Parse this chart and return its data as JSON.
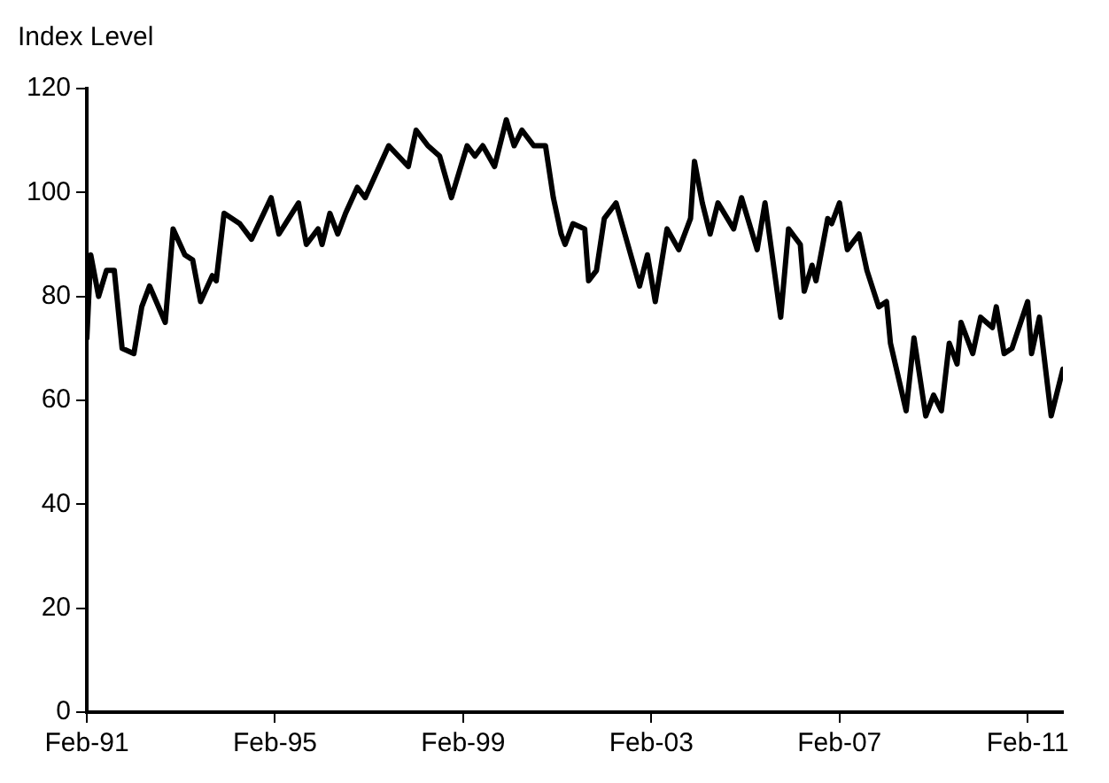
{
  "chart_data": {
    "type": "line",
    "ylabel": "Index Level",
    "x": [
      "1991-02",
      "1991-03",
      "1991-05",
      "1991-07",
      "1991-09",
      "1991-11",
      "1992-02",
      "1992-04",
      "1992-06",
      "1992-10",
      "1992-12",
      "1993-03",
      "1993-05",
      "1993-07",
      "1993-10",
      "1993-11",
      "1994-01",
      "1994-05",
      "1994-08",
      "1995-01",
      "1995-03",
      "1995-08",
      "1995-10",
      "1996-01",
      "1996-02",
      "1996-04",
      "1996-06",
      "1996-08",
      "1996-11",
      "1997-01",
      "1997-07",
      "1997-12",
      "1998-02",
      "1998-05",
      "1998-08",
      "1998-11",
      "1999-03",
      "1999-05",
      "1999-07",
      "1999-10",
      "2000-01",
      "2000-03",
      "2000-05",
      "2000-08",
      "2000-11",
      "2001-01",
      "2001-03",
      "2001-04",
      "2001-06",
      "2001-09",
      "2001-10",
      "2001-12",
      "2002-02",
      "2002-04",
      "2002-05",
      "2002-08",
      "2002-11",
      "2003-01",
      "2003-03",
      "2003-06",
      "2003-09",
      "2003-12",
      "2004-01",
      "2004-03",
      "2004-05",
      "2004-07",
      "2004-11",
      "2005-01",
      "2005-05",
      "2005-07",
      "2005-11",
      "2006-01",
      "2006-04",
      "2006-05",
      "2006-07",
      "2006-08",
      "2006-11",
      "2006-12",
      "2007-02",
      "2007-04",
      "2007-07",
      "2007-09",
      "2007-12",
      "2008-02",
      "2008-03",
      "2008-07",
      "2008-09",
      "2008-12",
      "2009-02",
      "2009-04",
      "2009-06",
      "2009-08",
      "2009-09",
      "2009-12",
      "2010-02",
      "2010-05",
      "2010-06",
      "2010-08",
      "2010-10",
      "2011-02",
      "2011-03",
      "2011-05",
      "2011-08",
      "2011-11"
    ],
    "series": [
      {
        "color": "#000000",
        "values": [
          72,
          88,
          80,
          85,
          85,
          70,
          69,
          78,
          82,
          75,
          93,
          88,
          87,
          79,
          84,
          83,
          96,
          94,
          91,
          99,
          92,
          98,
          90,
          93,
          90,
          96,
          92,
          96,
          101,
          99,
          109,
          105,
          112,
          109,
          107,
          99,
          109,
          107,
          109,
          105,
          114,
          109,
          112,
          109,
          109,
          99,
          92,
          90,
          94,
          93,
          83,
          85,
          95,
          97,
          98,
          90,
          82,
          88,
          79,
          93,
          89,
          95,
          106,
          98,
          92,
          98,
          93,
          99,
          89,
          98,
          76,
          93,
          90,
          81,
          86,
          83,
          95,
          94,
          98,
          89,
          92,
          85,
          78,
          79,
          71,
          58,
          72,
          57,
          61,
          58,
          71,
          67,
          75,
          69,
          76,
          74,
          78,
          69,
          70,
          79,
          69,
          76,
          57,
          66
        ]
      }
    ],
    "xlim": [
      "1991-02",
      "2011-11"
    ],
    "xticks": [
      {
        "value": "1991-02",
        "label": "Feb-91"
      },
      {
        "value": "1995-02",
        "label": "Feb-95"
      },
      {
        "value": "1999-02",
        "label": "Feb-99"
      },
      {
        "value": "2003-02",
        "label": "Feb-03"
      },
      {
        "value": "2007-02",
        "label": "Feb-07"
      },
      {
        "value": "2011-02",
        "label": "Feb-11"
      }
    ],
    "ylim": [
      0,
      120
    ],
    "yticks": [
      0,
      20,
      40,
      60,
      80,
      100,
      120
    ],
    "grid": false,
    "legend": false,
    "line_style": "solid",
    "marker": "none"
  }
}
